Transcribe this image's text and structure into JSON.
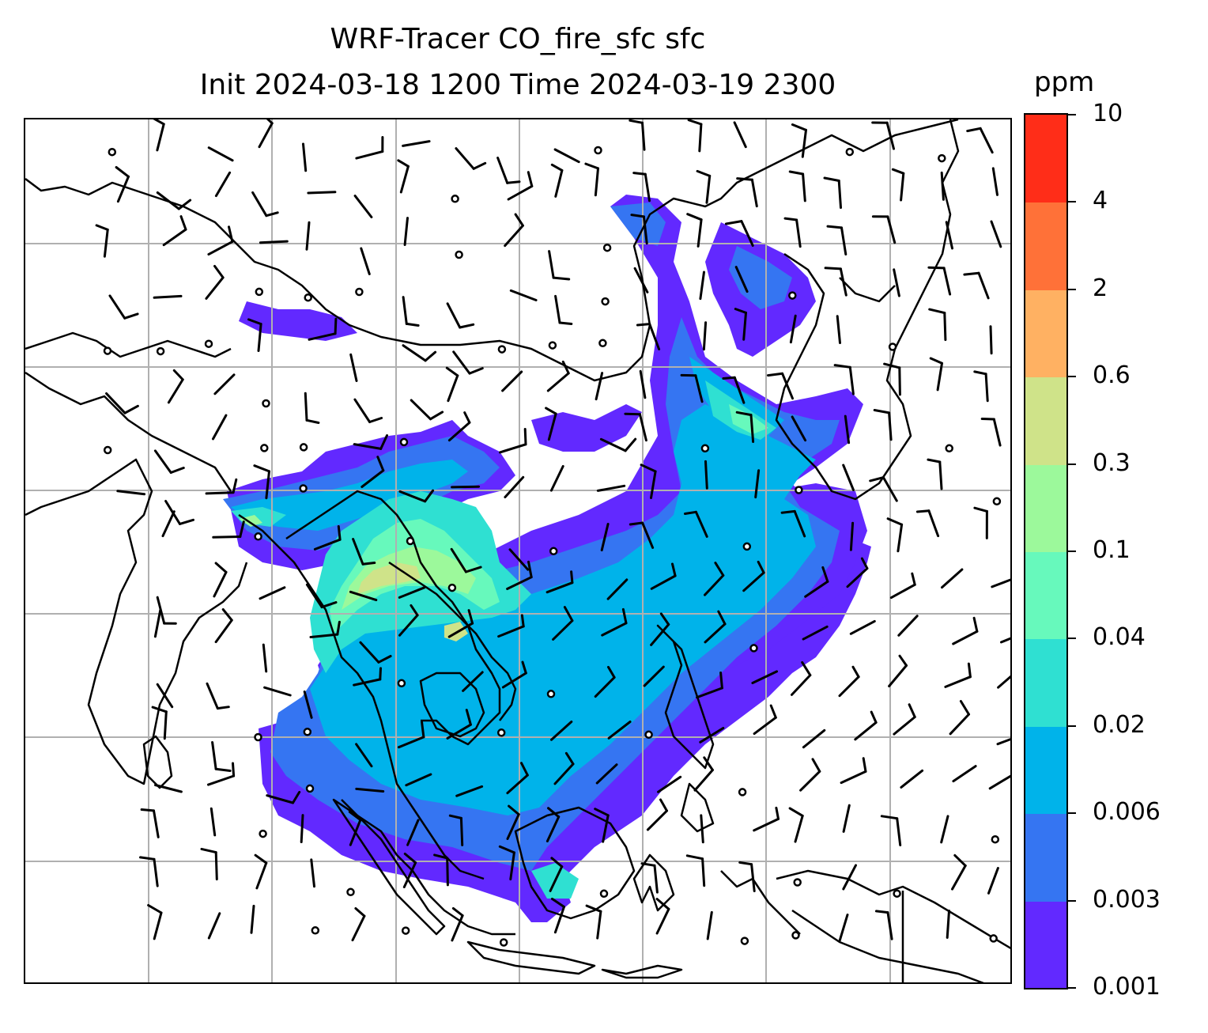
{
  "title": {
    "line1": "WRF-Tracer CO_fire_sfc sfc",
    "line2": "Init 2024-03-18 1200 Time 2024-03-19 2300"
  },
  "colorbar": {
    "unit": "ppm",
    "levels": [
      "0.001",
      "0.003",
      "0.006",
      "0.02",
      "0.04",
      "0.1",
      "0.3",
      "0.6",
      "2",
      "4",
      "10"
    ],
    "colors": [
      "#6229ff",
      "#3575f2",
      "#00b3ea",
      "#2fe0d2",
      "#67f9bc",
      "#9cf99b",
      "#cfe389",
      "#ffb162",
      "#ff7138",
      "#ff2d18"
    ]
  },
  "map": {
    "gridlines": true,
    "gridline_color": "#b0b0b0",
    "coastline_color": "#000000",
    "wind_barb_color": "#000000",
    "calm_symbol": "circle"
  }
}
